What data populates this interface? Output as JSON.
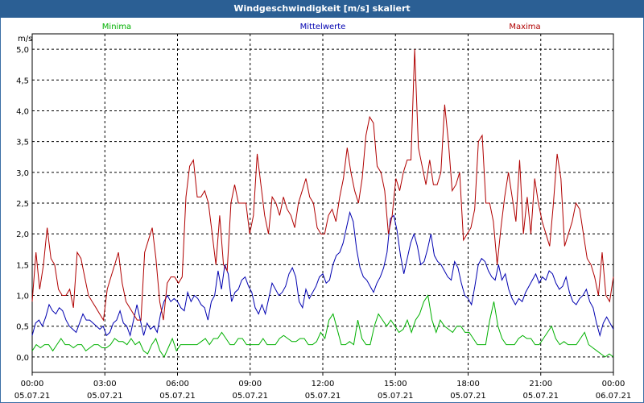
{
  "window_title": "Windgeschwindigkeit [m/s] skaliert",
  "chart_data": {
    "type": "line",
    "title": "Windgeschwindigkeit [m/s] skaliert",
    "ylabel": "m/s",
    "ylim": [
      -0.25,
      5.25
    ],
    "xlim_hours": [
      0,
      24
    ],
    "grid": true,
    "y_ticks": [
      "0,0",
      "0,5",
      "1,0",
      "1,5",
      "2,0",
      "2,5",
      "3,0",
      "3,5",
      "4,0",
      "4,5",
      "5,0"
    ],
    "y_tick_values": [
      0,
      0.5,
      1,
      1.5,
      2,
      2.5,
      3,
      3.5,
      4,
      4.5,
      5
    ],
    "x_ticks": [
      {
        "time": "00:00",
        "date": "05.07.21"
      },
      {
        "time": "03:00",
        "date": "05.07.21"
      },
      {
        "time": "06:00",
        "date": "05.07.21"
      },
      {
        "time": "09:00",
        "date": "05.07.21"
      },
      {
        "time": "12:00",
        "date": "05.07.21"
      },
      {
        "time": "15:00",
        "date": "05.07.21"
      },
      {
        "time": "18:00",
        "date": "05.07.21"
      },
      {
        "time": "21:00",
        "date": "05.07.21"
      },
      {
        "time": "00:00",
        "date": "06.07.21"
      }
    ],
    "series": [
      {
        "name": "Minima",
        "color": "#00b000",
        "values": [
          0.1,
          0.2,
          0.15,
          0.2,
          0.2,
          0.1,
          0.2,
          0.3,
          0.2,
          0.2,
          0.15,
          0.2,
          0.2,
          0.1,
          0.15,
          0.2,
          0.2,
          0.15,
          0.15,
          0.2,
          0.3,
          0.25,
          0.25,
          0.2,
          0.3,
          0.2,
          0.25,
          0.1,
          0.05,
          0.2,
          0.3,
          0.1,
          0.0,
          0.15,
          0.3,
          0.1,
          0.2,
          0.2,
          0.2,
          0.2,
          0.2,
          0.25,
          0.3,
          0.2,
          0.3,
          0.3,
          0.4,
          0.3,
          0.2,
          0.2,
          0.3,
          0.3,
          0.2,
          0.2,
          0.2,
          0.2,
          0.3,
          0.2,
          0.2,
          0.2,
          0.3,
          0.35,
          0.3,
          0.25,
          0.25,
          0.3,
          0.3,
          0.2,
          0.2,
          0.25,
          0.4,
          0.3,
          0.6,
          0.7,
          0.45,
          0.2,
          0.2,
          0.25,
          0.2,
          0.6,
          0.3,
          0.2,
          0.2,
          0.5,
          0.7,
          0.6,
          0.5,
          0.6,
          0.5,
          0.4,
          0.45,
          0.6,
          0.4,
          0.6,
          0.7,
          0.9,
          1.0,
          0.6,
          0.4,
          0.6,
          0.5,
          0.45,
          0.4,
          0.5,
          0.5,
          0.4,
          0.4,
          0.3,
          0.2,
          0.2,
          0.2,
          0.6,
          0.9,
          0.5,
          0.3,
          0.2,
          0.2,
          0.2,
          0.3,
          0.35,
          0.3,
          0.3,
          0.2,
          0.2,
          0.3,
          0.4,
          0.5,
          0.3,
          0.2,
          0.25,
          0.2,
          0.2,
          0.2,
          0.3,
          0.4,
          0.2,
          0.15,
          0.1,
          0.05,
          0.0,
          0.05,
          0.0
        ]
      },
      {
        "name": "Mittelwerte",
        "color": "#0000b0",
        "values": [
          0.35,
          0.55,
          0.6,
          0.5,
          0.65,
          0.85,
          0.75,
          0.7,
          0.8,
          0.75,
          0.6,
          0.5,
          0.45,
          0.4,
          0.55,
          0.7,
          0.6,
          0.6,
          0.55,
          0.5,
          0.45,
          0.5,
          0.35,
          0.4,
          0.55,
          0.6,
          0.75,
          0.55,
          0.5,
          0.35,
          0.6,
          0.85,
          0.6,
          0.35,
          0.55,
          0.45,
          0.5,
          0.4,
          0.7,
          0.9,
          1.0,
          0.9,
          0.95,
          0.9,
          0.8,
          0.75,
          1.05,
          0.9,
          1.0,
          0.95,
          0.85,
          0.8,
          0.6,
          0.9,
          1.0,
          1.4,
          1.1,
          1.5,
          1.35,
          0.9,
          1.05,
          1.1,
          1.25,
          1.3,
          1.15,
          1.05,
          0.8,
          0.7,
          0.85,
          0.7,
          0.95,
          1.2,
          1.1,
          1.0,
          1.05,
          1.15,
          1.35,
          1.45,
          1.3,
          0.9,
          0.8,
          1.1,
          0.95,
          1.05,
          1.15,
          1.3,
          1.35,
          1.2,
          1.25,
          1.5,
          1.65,
          1.7,
          1.85,
          2.1,
          2.35,
          2.2,
          1.75,
          1.45,
          1.3,
          1.25,
          1.15,
          1.05,
          1.2,
          1.3,
          1.45,
          1.7,
          2.25,
          2.3,
          2.05,
          1.65,
          1.35,
          1.6,
          1.85,
          2.0,
          1.8,
          1.5,
          1.55,
          1.75,
          2.0,
          1.65,
          1.55,
          1.5,
          1.4,
          1.3,
          1.25,
          1.55,
          1.45,
          1.2,
          1.0,
          0.95,
          0.85,
          1.15,
          1.5,
          1.6,
          1.55,
          1.4,
          1.3,
          1.25,
          1.5,
          1.25,
          1.35,
          1.1,
          0.95,
          0.85,
          0.95,
          0.9,
          1.05,
          1.15,
          1.25,
          1.35,
          1.2,
          1.3,
          1.25,
          1.4,
          1.35,
          1.2,
          1.1,
          1.15,
          1.3,
          1.05,
          0.9,
          0.85,
          0.95,
          1.0,
          1.1,
          0.9,
          0.8,
          0.55,
          0.35,
          0.55,
          0.65,
          0.55,
          0.45
        ]
      },
      {
        "name": "Maxima",
        "color": "#b00000",
        "values": [
          0.9,
          1.7,
          1.1,
          1.5,
          2.1,
          1.6,
          1.5,
          1.1,
          1.0,
          1.0,
          1.1,
          0.8,
          1.7,
          1.6,
          1.3,
          1.0,
          0.9,
          0.8,
          0.7,
          0.6,
          1.1,
          1.3,
          1.5,
          1.7,
          1.2,
          0.9,
          0.8,
          0.7,
          0.6,
          0.6,
          1.7,
          1.9,
          2.1,
          1.6,
          0.9,
          0.6,
          1.2,
          1.3,
          1.3,
          1.2,
          1.3,
          2.6,
          3.1,
          3.2,
          2.6,
          2.6,
          2.7,
          2.5,
          2.0,
          1.5,
          2.3,
          1.5,
          1.4,
          2.5,
          2.8,
          2.5,
          2.5,
          2.5,
          2.0,
          2.3,
          3.3,
          2.8,
          2.3,
          2.0,
          2.6,
          2.5,
          2.3,
          2.6,
          2.4,
          2.3,
          2.1,
          2.5,
          2.7,
          2.9,
          2.6,
          2.5,
          2.1,
          2.0,
          2.0,
          2.3,
          2.4,
          2.2,
          2.6,
          2.9,
          3.4,
          3.0,
          2.7,
          2.5,
          2.9,
          3.6,
          3.9,
          3.8,
          3.1,
          3.0,
          2.7,
          2.0,
          2.3,
          2.9,
          2.7,
          3.0,
          3.2,
          3.2,
          5.0,
          3.4,
          3.1,
          2.8,
          3.2,
          2.8,
          2.8,
          3.0,
          4.1,
          3.5,
          2.7,
          2.8,
          3.0,
          1.9,
          2.0,
          2.1,
          2.4,
          3.5,
          3.6,
          2.5,
          2.5,
          2.2,
          1.5,
          2.1,
          2.6,
          3.0,
          2.6,
          2.2,
          3.2,
          2.0,
          2.6,
          2.0,
          2.9,
          2.5,
          2.2,
          2.0,
          1.8,
          2.5,
          3.3,
          2.9,
          1.8,
          2.0,
          2.2,
          2.5,
          2.4,
          2.0,
          1.6,
          1.5,
          1.3,
          1.0,
          1.7,
          1.0,
          0.9,
          1.3
        ]
      }
    ]
  }
}
